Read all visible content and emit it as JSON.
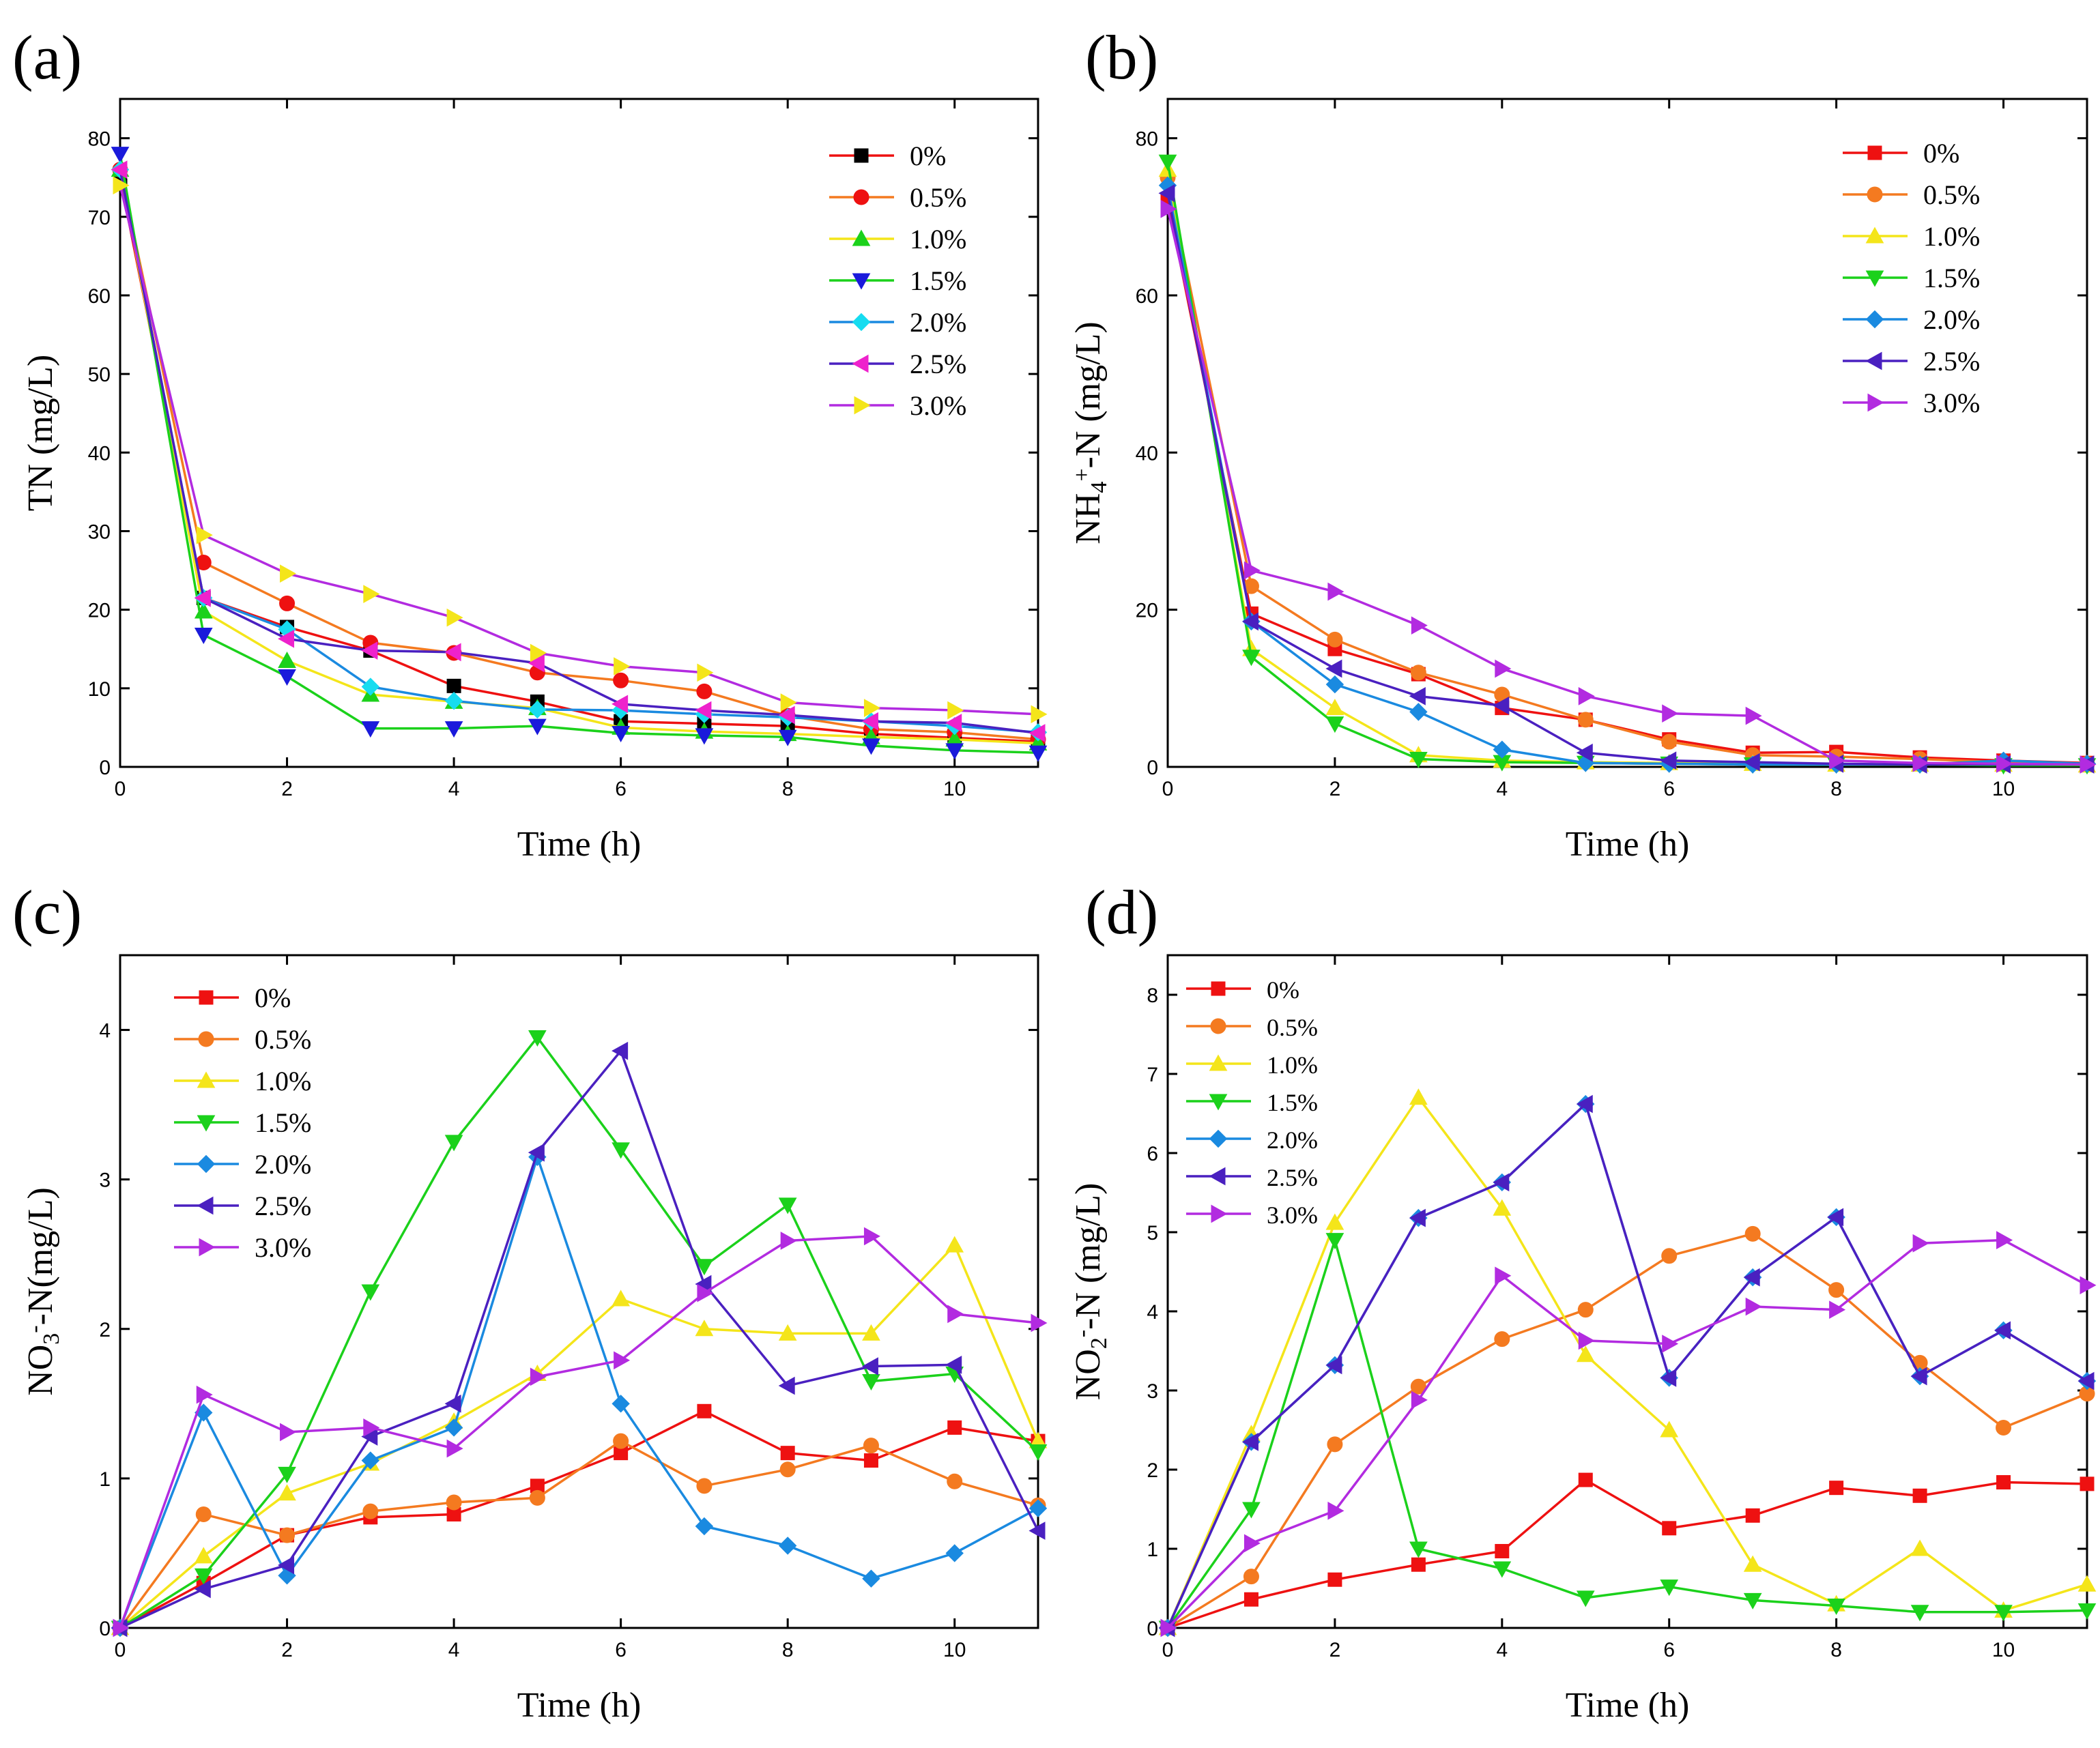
{
  "figure": {
    "title": ""
  },
  "chart_data": [
    {
      "type": "line",
      "panel_label": "(a)",
      "title": "",
      "xlabel": "Time (h)",
      "ylabel_parts": [
        [
          "TN (mg/L)",
          ""
        ]
      ],
      "xlim": [
        0,
        11
      ],
      "ylim": [
        0,
        85
      ],
      "xticks": [
        "0",
        "2",
        "4",
        "6",
        "8",
        "10"
      ],
      "yticks": [
        "0",
        "10",
        "20",
        "30",
        "40",
        "50",
        "60",
        "70",
        "80"
      ],
      "grid": false,
      "legend_position": "top-right",
      "x": [
        0,
        1,
        2,
        3,
        4,
        5,
        6,
        7,
        8,
        9,
        10,
        11
      ],
      "series": [
        {
          "name": "0%",
          "color": "#ee1111",
          "marker_color": "#000000",
          "marker": "square",
          "values": [
            75,
            21.5,
            17.8,
            14.8,
            10.3,
            8.3,
            5.8,
            5.5,
            5.2,
            4.2,
            3.7,
            3.2
          ]
        },
        {
          "name": "0.5%",
          "color": "#f47a20",
          "marker_color": "#ee1111",
          "marker": "circle",
          "values": [
            76,
            26,
            20.8,
            15.8,
            14.5,
            12,
            11,
            9.6,
            6.5,
            4.8,
            4.4,
            3.5
          ]
        },
        {
          "name": "1.0%",
          "color": "#f4e51a",
          "marker_color": "#1bd11b",
          "marker": "triangle-up",
          "values": [
            76,
            19.8,
            13.5,
            9.2,
            8.3,
            7.5,
            5,
            4.5,
            4.2,
            3.8,
            3.5,
            3
          ]
        },
        {
          "name": "1.5%",
          "color": "#1bd11b",
          "marker_color": "#1a1adb",
          "marker": "triangle-down",
          "values": [
            78,
            16.8,
            11.5,
            4.9,
            4.9,
            5.2,
            4.3,
            4,
            3.8,
            2.7,
            2.1,
            1.8
          ]
        },
        {
          "name": "2.0%",
          "color": "#1a8ae0",
          "marker_color": "#16dcf0",
          "marker": "diamond",
          "values": [
            76,
            21.5,
            17.5,
            10.2,
            8.4,
            7.3,
            7.2,
            6.7,
            6.3,
            5.8,
            5.2,
            4.4
          ]
        },
        {
          "name": "2.5%",
          "color": "#4a20c0",
          "marker_color": "#ee22cc",
          "marker": "triangle-left",
          "values": [
            76,
            21.5,
            16.3,
            14.8,
            14.6,
            13.2,
            8,
            7.2,
            6.6,
            5.8,
            5.6,
            4.3
          ]
        },
        {
          "name": "3.0%",
          "color": "#b22be0",
          "marker_color": "#f4e51a",
          "marker": "triangle-right",
          "values": [
            74,
            29.5,
            24.6,
            22,
            19,
            14.5,
            12.8,
            12,
            8.2,
            7.5,
            7.2,
            6.7
          ]
        }
      ]
    },
    {
      "type": "line",
      "panel_label": "(b)",
      "title": "",
      "xlabel": "Time (h)",
      "ylabel_parts": [
        [
          "NH",
          ""
        ],
        [
          "4",
          "sub"
        ],
        [
          "+",
          "sup"
        ],
        [
          "-N (mg/L)",
          ""
        ]
      ],
      "xlim": [
        0,
        11
      ],
      "ylim": [
        0,
        85
      ],
      "xticks": [
        "0",
        "2",
        "4",
        "6",
        "8",
        "10"
      ],
      "yticks": [
        "0",
        "20",
        "40",
        "60",
        "80"
      ],
      "grid": false,
      "legend_position": "top-right",
      "x": [
        0,
        1,
        2,
        3,
        4,
        5,
        6,
        7,
        8,
        9,
        10,
        11
      ],
      "series": [
        {
          "name": "0%",
          "color": "#ee1111",
          "marker_color": "#ee1111",
          "marker": "square",
          "values": [
            72,
            19.5,
            15,
            11.8,
            7.5,
            6,
            3.5,
            1.8,
            1.9,
            1.2,
            0.8,
            0.5
          ]
        },
        {
          "name": "0.5%",
          "color": "#f47a20",
          "marker_color": "#f47a20",
          "marker": "circle",
          "values": [
            75,
            23,
            16.2,
            12,
            9.2,
            6,
            3.2,
            1.5,
            1.3,
            1,
            0.6,
            0.4
          ]
        },
        {
          "name": "1.0%",
          "color": "#f4e51a",
          "marker_color": "#f4e51a",
          "marker": "triangle-up",
          "values": [
            76,
            15,
            7.5,
            1.5,
            0.8,
            0.6,
            0.5,
            0.4,
            0.3,
            0.3,
            0.3,
            0.2
          ]
        },
        {
          "name": "1.5%",
          "color": "#1bd11b",
          "marker_color": "#1bd11b",
          "marker": "triangle-down",
          "values": [
            77,
            14,
            5.5,
            1,
            0.6,
            0.5,
            0.4,
            0.3,
            0.3,
            0.3,
            0.2,
            0.2
          ]
        },
        {
          "name": "2.0%",
          "color": "#1a8ae0",
          "marker_color": "#1a8ae0",
          "marker": "diamond",
          "values": [
            74,
            18.5,
            10.5,
            7,
            2.2,
            0.5,
            0.4,
            0.3,
            0.3,
            0.3,
            0.8,
            0.4
          ]
        },
        {
          "name": "2.5%",
          "color": "#4a20c0",
          "marker_color": "#4a20c0",
          "marker": "triangle-left",
          "values": [
            73,
            18.5,
            12.5,
            9,
            7.8,
            1.8,
            0.8,
            0.6,
            0.4,
            0.3,
            0.3,
            0.3
          ]
        },
        {
          "name": "3.0%",
          "color": "#b22be0",
          "marker_color": "#b22be0",
          "marker": "triangle-right",
          "values": [
            71,
            25,
            22.3,
            18,
            12.5,
            9,
            6.8,
            6.5,
            0.8,
            0.5,
            0.4,
            0.3
          ]
        }
      ]
    },
    {
      "type": "line",
      "panel_label": "(c)",
      "title": "",
      "xlabel": "Time (h)",
      "ylabel_parts": [
        [
          "NO",
          ""
        ],
        [
          "3",
          "sub"
        ],
        [
          "-",
          "sup"
        ],
        [
          "-N(mg/L)",
          ""
        ]
      ],
      "xlim": [
        0,
        11
      ],
      "ylim": [
        0,
        4.5
      ],
      "xticks": [
        "0",
        "2",
        "4",
        "6",
        "8",
        "10"
      ],
      "yticks": [
        "0",
        "1",
        "2",
        "3",
        "4"
      ],
      "grid": false,
      "legend_position": "top-left",
      "x": [
        0,
        1,
        2,
        3,
        4,
        5,
        6,
        7,
        8,
        9,
        10,
        11
      ],
      "series": [
        {
          "name": "0%",
          "color": "#ee1111",
          "marker_color": "#ee1111",
          "marker": "square",
          "values": [
            0,
            0.3,
            0.62,
            0.74,
            0.76,
            0.95,
            1.17,
            1.45,
            1.17,
            1.12,
            1.34,
            1.25
          ]
        },
        {
          "name": "0.5%",
          "color": "#f47a20",
          "marker_color": "#f47a20",
          "marker": "circle",
          "values": [
            0,
            0.76,
            0.62,
            0.78,
            0.84,
            0.87,
            1.25,
            0.95,
            1.06,
            1.22,
            0.98,
            0.82
          ]
        },
        {
          "name": "1.0%",
          "color": "#f4e51a",
          "marker_color": "#f4e51a",
          "marker": "triangle-up",
          "values": [
            0,
            0.48,
            0.9,
            1.1,
            1.38,
            1.7,
            2.2,
            2,
            1.97,
            1.97,
            2.56,
            1.25
          ]
        },
        {
          "name": "1.5%",
          "color": "#1bd11b",
          "marker_color": "#1bd11b",
          "marker": "triangle-down",
          "values": [
            0,
            0.35,
            1.03,
            2.25,
            3.25,
            3.95,
            3.2,
            2.42,
            2.83,
            1.65,
            1.7,
            1.18
          ]
        },
        {
          "name": "2.0%",
          "color": "#1a8ae0",
          "marker_color": "#1a8ae0",
          "marker": "diamond",
          "values": [
            0,
            1.44,
            0.35,
            1.12,
            1.34,
            3.15,
            1.5,
            0.68,
            0.55,
            0.33,
            0.5,
            0.8
          ]
        },
        {
          "name": "2.5%",
          "color": "#4a20c0",
          "marker_color": "#4a20c0",
          "marker": "triangle-left",
          "values": [
            0,
            0.26,
            0.42,
            1.28,
            1.5,
            3.18,
            3.86,
            2.3,
            1.62,
            1.75,
            1.76,
            0.65
          ]
        },
        {
          "name": "3.0%",
          "color": "#b22be0",
          "marker_color": "#b22be0",
          "marker": "triangle-right",
          "values": [
            0,
            1.56,
            1.31,
            1.34,
            1.2,
            1.68,
            1.79,
            2.24,
            2.59,
            2.62,
            2.1,
            2.04
          ]
        }
      ]
    },
    {
      "type": "line",
      "panel_label": "(d)",
      "title": "",
      "xlabel": "Time (h)",
      "ylabel_parts": [
        [
          "NO",
          ""
        ],
        [
          "2",
          "sub"
        ],
        [
          "-",
          "sup"
        ],
        [
          "-N (mg/L)",
          ""
        ]
      ],
      "xlim": [
        0,
        11
      ],
      "ylim": [
        0,
        8.5
      ],
      "xticks": [
        "0",
        "2",
        "4",
        "6",
        "8",
        "10"
      ],
      "yticks": [
        "0",
        "1",
        "2",
        "3",
        "4",
        "5",
        "6",
        "7",
        "8"
      ],
      "grid": false,
      "legend_position": "top-left",
      "x": [
        0,
        1,
        2,
        3,
        4,
        5,
        6,
        7,
        8,
        9,
        10,
        11
      ],
      "series": [
        {
          "name": "0%",
          "color": "#ee1111",
          "marker_color": "#ee1111",
          "marker": "square",
          "values": [
            0,
            0.36,
            0.61,
            0.8,
            0.97,
            1.87,
            1.26,
            1.42,
            1.77,
            1.67,
            1.84,
            1.82
          ]
        },
        {
          "name": "0.5%",
          "color": "#f47a20",
          "marker_color": "#f47a20",
          "marker": "circle",
          "values": [
            0,
            0.65,
            2.32,
            3.05,
            3.65,
            4.02,
            4.7,
            4.98,
            4.27,
            3.35,
            2.53,
            2.96
          ]
        },
        {
          "name": "1.0%",
          "color": "#f4e51a",
          "marker_color": "#f4e51a",
          "marker": "triangle-up",
          "values": [
            0,
            2.45,
            5.12,
            6.7,
            5.3,
            3.45,
            2.5,
            0.8,
            0.3,
            1,
            0.22,
            0.55
          ]
        },
        {
          "name": "1.5%",
          "color": "#1bd11b",
          "marker_color": "#1bd11b",
          "marker": "triangle-down",
          "values": [
            0,
            1.5,
            4.9,
            1,
            0.75,
            0.38,
            0.52,
            0.35,
            0.28,
            0.2,
            0.2,
            0.22
          ]
        },
        {
          "name": "2.0%",
          "color": "#1a8ae0",
          "marker_color": "#1a8ae0",
          "marker": "diamond",
          "values": [
            0,
            2.35,
            3.32,
            5.18,
            5.63,
            6.62,
            3.16,
            4.43,
            5.19,
            3.18,
            3.76,
            3.12
          ]
        },
        {
          "name": "2.5%",
          "color": "#4a20c0",
          "marker_color": "#4a20c0",
          "marker": "triangle-left",
          "values": [
            0,
            2.35,
            3.32,
            5.18,
            5.63,
            6.62,
            3.16,
            4.43,
            5.19,
            3.18,
            3.76,
            3.12
          ]
        },
        {
          "name": "3.0%",
          "color": "#b22be0",
          "marker_color": "#b22be0",
          "marker": "triangle-right",
          "values": [
            0,
            1.07,
            1.48,
            2.88,
            4.45,
            3.63,
            3.59,
            4.06,
            4.02,
            4.86,
            4.9,
            4.33
          ]
        }
      ]
    }
  ]
}
